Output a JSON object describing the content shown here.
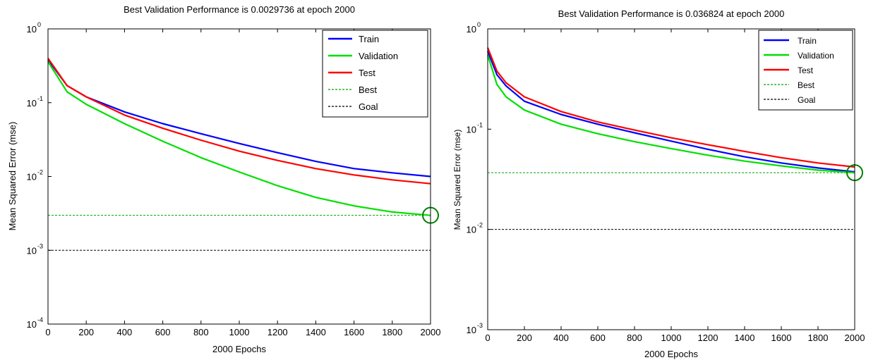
{
  "chart_data": [
    {
      "type": "line",
      "title": "Best Validation Performance is 0.0029736 at epoch 2000",
      "xlabel": "2000 Epochs",
      "ylabel": "Mean Squared Error  (mse)",
      "xlim": [
        0,
        2000
      ],
      "ylim": [
        0.0001,
        1
      ],
      "yscale": "log",
      "xticks": [
        "0",
        "200",
        "400",
        "600",
        "800",
        "1000",
        "1200",
        "1400",
        "1600",
        "1800",
        "2000"
      ],
      "ytick_exponents": [
        "0",
        "-1",
        "-2",
        "-3",
        "-4"
      ],
      "legend_placement": "top-right",
      "legend": [
        "Train",
        "Validation",
        "Test",
        "Best",
        "Goal"
      ],
      "x": [
        0,
        100,
        200,
        400,
        600,
        800,
        1000,
        1200,
        1400,
        1600,
        1800,
        2000
      ],
      "series": [
        {
          "name": "Train",
          "color": "#0000ff",
          "style": "solid",
          "values": [
            0.38,
            0.17,
            0.12,
            0.075,
            0.052,
            0.038,
            0.028,
            0.021,
            0.016,
            0.0128,
            0.0112,
            0.01
          ]
        },
        {
          "name": "Validation",
          "color": "#00e000",
          "style": "solid",
          "values": [
            0.36,
            0.14,
            0.095,
            0.052,
            0.03,
            0.018,
            0.0115,
            0.0075,
            0.0052,
            0.004,
            0.0033,
            0.0029736
          ]
        },
        {
          "name": "Test",
          "color": "#ff0000",
          "style": "solid",
          "values": [
            0.4,
            0.17,
            0.12,
            0.068,
            0.045,
            0.031,
            0.022,
            0.0165,
            0.0128,
            0.0105,
            0.009,
            0.008
          ]
        }
      ],
      "best": {
        "name": "Best",
        "value": 0.0029736,
        "epoch": 2000,
        "color": "#00a000"
      },
      "goal": {
        "name": "Goal",
        "value": 0.001,
        "color": "#000000"
      }
    },
    {
      "type": "line",
      "title": "Best Validation Performance is 0.036824 at epoch 2000",
      "xlabel": "2000 Epochs",
      "ylabel": "Mean Squared Error  (mse)",
      "xlim": [
        0,
        2000
      ],
      "ylim": [
        0.001,
        1
      ],
      "yscale": "log",
      "xticks": [
        "0",
        "200",
        "400",
        "600",
        "800",
        "1000",
        "1200",
        "1400",
        "1600",
        "1800",
        "2000"
      ],
      "ytick_exponents": [
        "0",
        "-1",
        "-2",
        "-3"
      ],
      "legend_placement": "top-right",
      "legend": [
        "Train",
        "Validation",
        "Test",
        "Best",
        "Goal"
      ],
      "x": [
        0,
        50,
        100,
        200,
        400,
        600,
        800,
        1000,
        1200,
        1400,
        1600,
        1800,
        2000
      ],
      "series": [
        {
          "name": "Train",
          "color": "#0000ff",
          "style": "solid",
          "values": [
            0.6,
            0.35,
            0.27,
            0.19,
            0.14,
            0.112,
            0.092,
            0.076,
            0.063,
            0.053,
            0.046,
            0.041,
            0.0375
          ]
        },
        {
          "name": "Validation",
          "color": "#00e000",
          "style": "solid",
          "values": [
            0.55,
            0.28,
            0.21,
            0.155,
            0.112,
            0.09,
            0.075,
            0.064,
            0.055,
            0.048,
            0.043,
            0.039,
            0.036824
          ]
        },
        {
          "name": "Test",
          "color": "#ff0000",
          "style": "solid",
          "values": [
            0.65,
            0.38,
            0.29,
            0.21,
            0.15,
            0.118,
            0.098,
            0.082,
            0.07,
            0.06,
            0.052,
            0.046,
            0.042
          ]
        }
      ],
      "best": {
        "name": "Best",
        "value": 0.036824,
        "epoch": 2000,
        "color": "#00a000"
      },
      "goal": {
        "name": "Goal",
        "value": 0.01,
        "color": "#000000"
      }
    }
  ]
}
